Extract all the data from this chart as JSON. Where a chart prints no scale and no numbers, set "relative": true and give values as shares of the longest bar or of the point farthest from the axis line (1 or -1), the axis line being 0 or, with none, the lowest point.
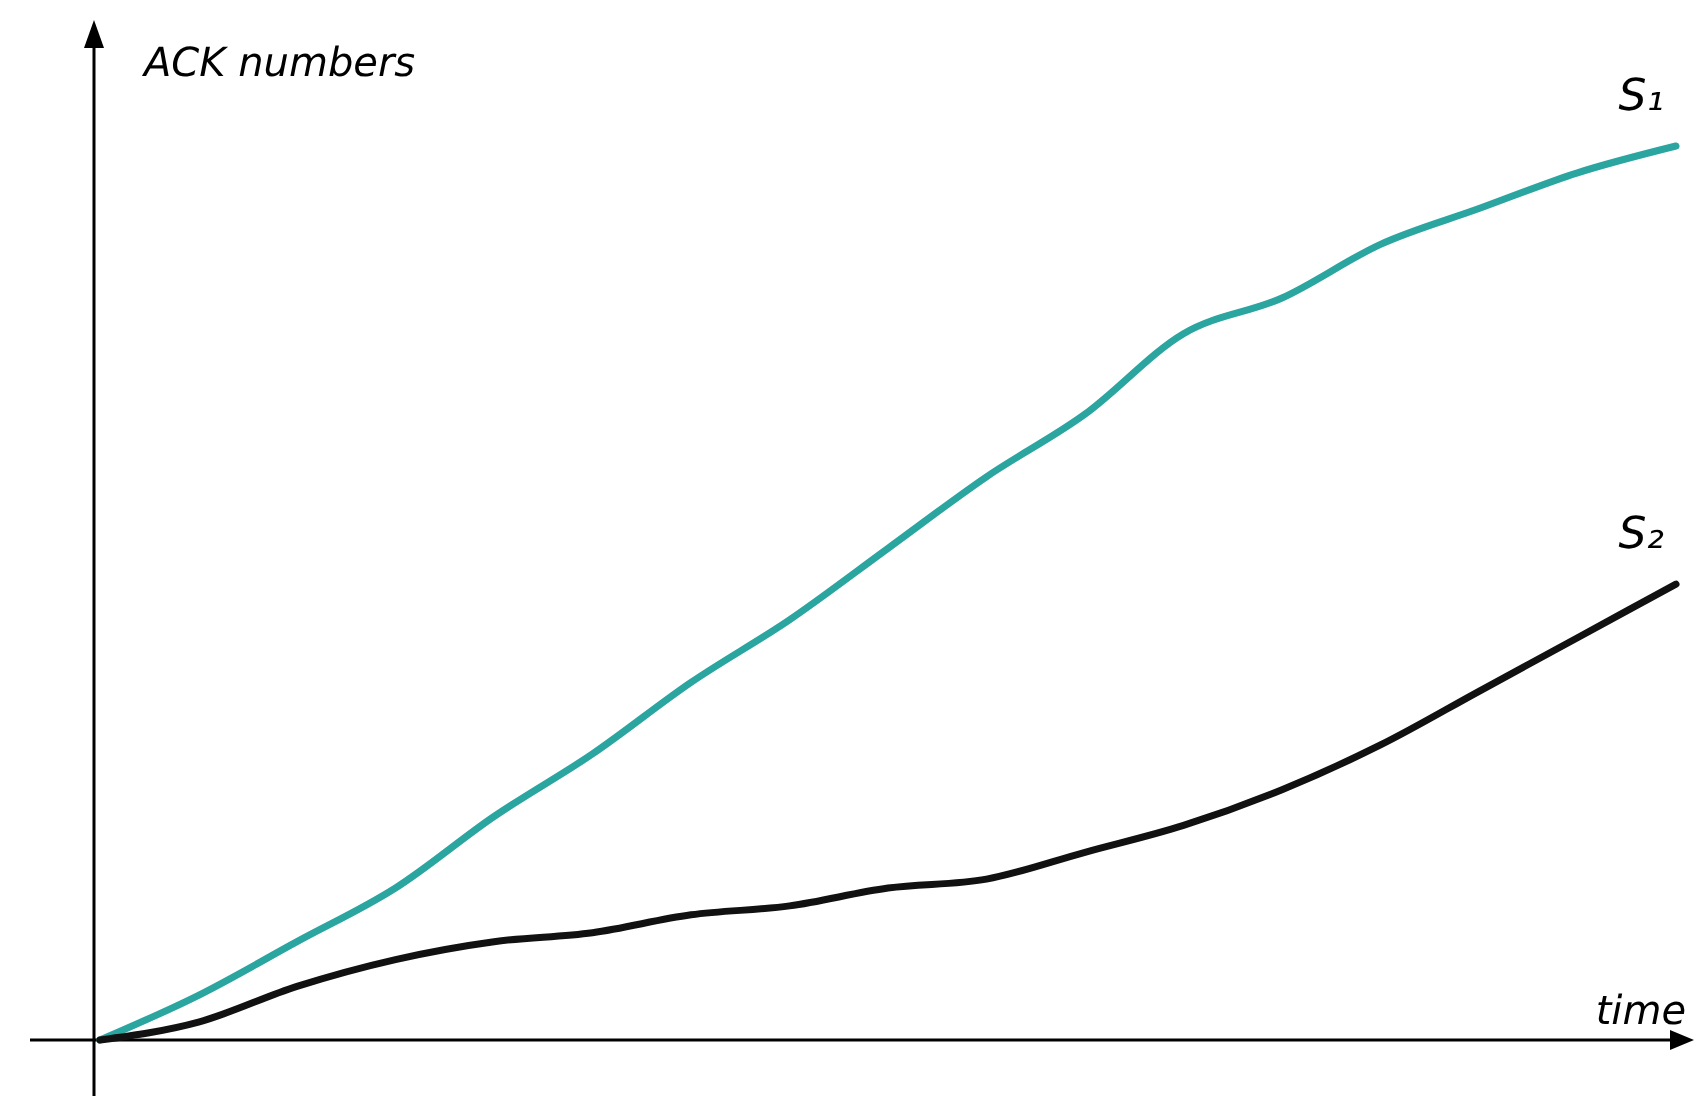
{
  "chart_data": {
    "type": "line",
    "relative": true,
    "xlabel": "time",
    "ylabel": "ACK numbers",
    "categories": [
      null,
      null,
      null,
      null,
      null,
      null,
      null,
      null,
      null,
      null,
      null,
      null,
      null,
      null,
      null,
      null,
      null
    ],
    "grid": false,
    "marker": "none",
    "line_style": "solid",
    "series": [
      {
        "name": "S₁",
        "color": "#2ba5a0",
        "values": [
          0,
          0.05,
          0.11,
          0.17,
          0.25,
          0.32,
          0.4,
          0.47,
          0.55,
          0.63,
          0.7,
          0.79,
          0.83,
          0.89,
          0.93,
          0.97,
          1
        ]
      },
      {
        "name": "S₂",
        "color": "#111111",
        "values": [
          0,
          0.02,
          0.06,
          0.09,
          0.11,
          0.12,
          0.14,
          0.15,
          0.17,
          0.18,
          0.21,
          0.24,
          0.28,
          0.33,
          0.39,
          0.45,
          0.51
        ]
      }
    ]
  }
}
